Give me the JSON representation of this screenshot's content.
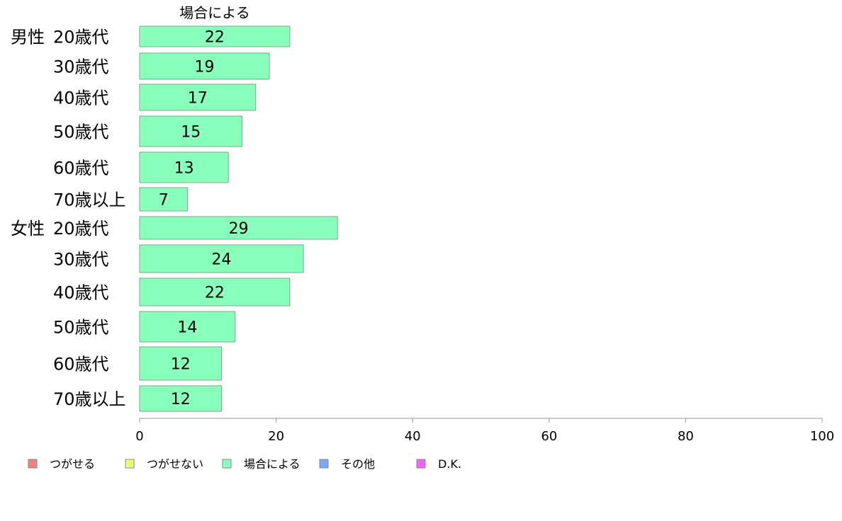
{
  "chart_data": {
    "type": "bar",
    "orientation": "horizontal",
    "series_title": "場合による",
    "groups": [
      {
        "label": "男性",
        "categories": [
          "20歳代",
          "30歳代",
          "40歳代",
          "50歳代",
          "60歳代",
          "70歳以上"
        ]
      },
      {
        "label": "女性",
        "categories": [
          "20歳代",
          "30歳代",
          "40歳代",
          "50歳代",
          "60歳代",
          "70歳以上"
        ]
      }
    ],
    "categories": [
      "20歳代",
      "30歳代",
      "40歳代",
      "50歳代",
      "60歳代",
      "70歳以上",
      "20歳代",
      "30歳代",
      "40歳代",
      "50歳代",
      "60歳代",
      "70歳以上"
    ],
    "series": [
      {
        "name": "場合による",
        "color": "#88ffbb",
        "values": [
          22,
          19,
          17,
          15,
          13,
          7,
          29,
          24,
          22,
          14,
          12,
          12
        ]
      }
    ],
    "xlim": [
      0,
      100
    ],
    "xticks": [
      0,
      20,
      40,
      60,
      80,
      100
    ],
    "grid": false,
    "legend_position": "bottom",
    "legend": [
      {
        "label": "つがせる",
        "color": "#f08080"
      },
      {
        "label": "つがせない",
        "color": "#eeff77"
      },
      {
        "label": "場合による",
        "color": "#88ffbb"
      },
      {
        "label": "その他",
        "color": "#77aaff"
      },
      {
        "label": "D.K.",
        "color": "#ee66ff"
      }
    ]
  }
}
